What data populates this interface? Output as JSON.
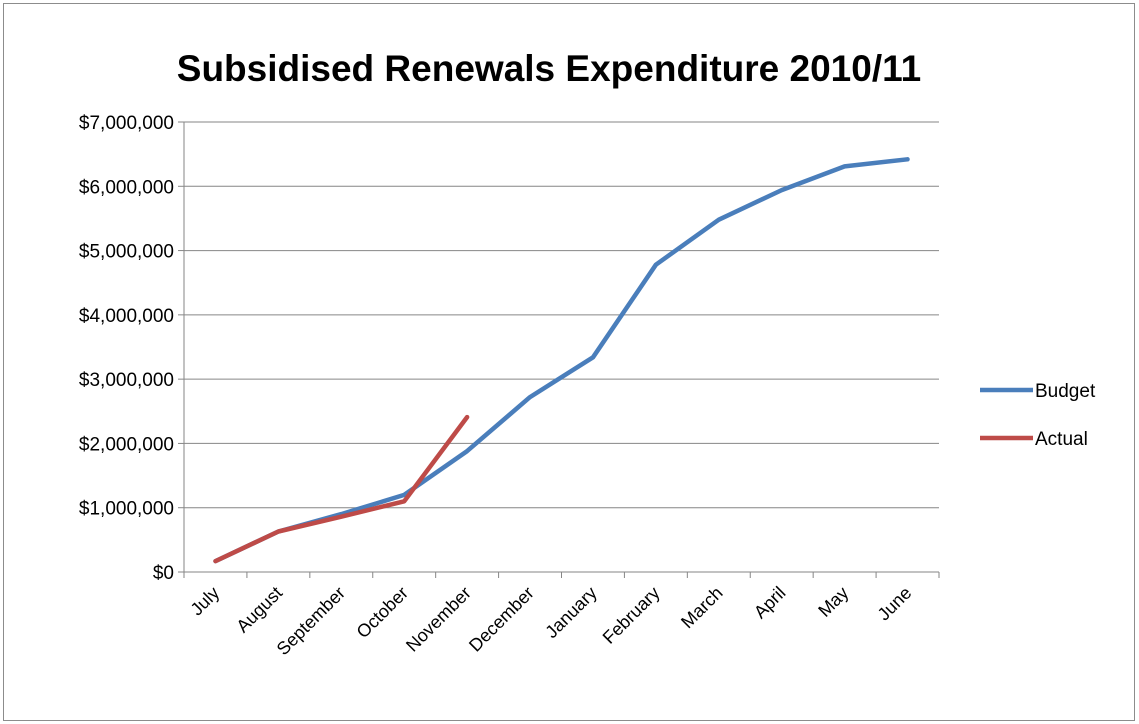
{
  "chart_data": {
    "type": "line",
    "title": "Subsidised Renewals Expenditure 2010/11",
    "xlabel": "",
    "ylabel": "",
    "categories": [
      "July",
      "August",
      "September",
      "October",
      "November",
      "December",
      "January",
      "February",
      "March",
      "April",
      "May",
      "June"
    ],
    "ylim": [
      0,
      7000000
    ],
    "yticks": [
      "$0",
      "$1,000,000",
      "$2,000,000",
      "$3,000,000",
      "$4,000,000",
      "$5,000,000",
      "$6,000,000",
      "$7,000,000"
    ],
    "grid": true,
    "legend_position": "right",
    "series": [
      {
        "name": "Budget",
        "color": "#4a7ebb",
        "values": [
          170000,
          630000,
          900000,
          1200000,
          1880000,
          2720000,
          3340000,
          4780000,
          5480000,
          5940000,
          6310000,
          6420000
        ]
      },
      {
        "name": "Actual",
        "color": "#be4b48",
        "values": [
          170000,
          630000,
          860000,
          1100000,
          2410000,
          null,
          null,
          null,
          null,
          null,
          null,
          null
        ]
      }
    ]
  }
}
